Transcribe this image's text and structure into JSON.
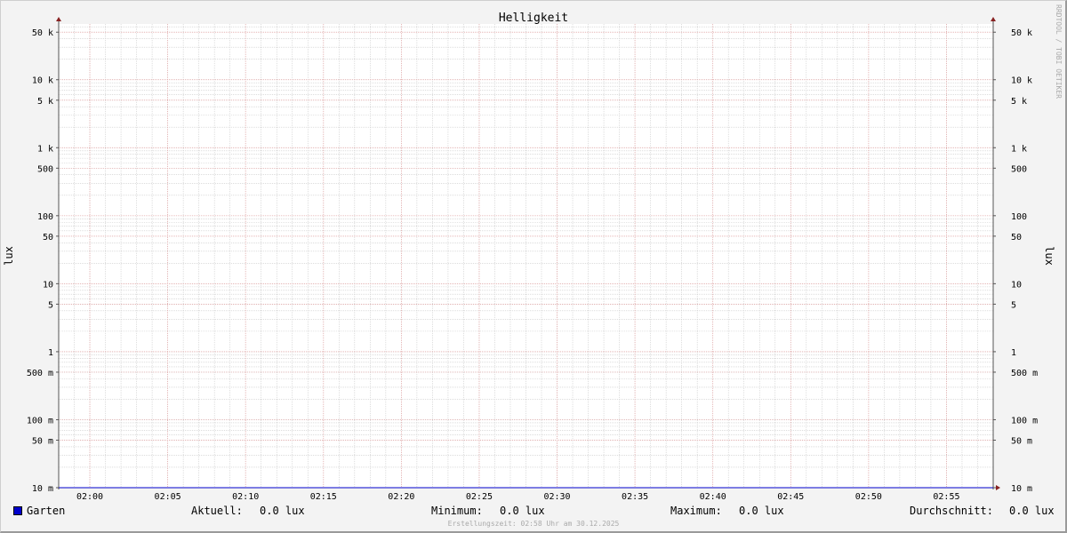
{
  "chart_data": {
    "type": "line",
    "title": "Helligkeit",
    "ylabel": "lux",
    "yscale": "log",
    "ylim": [
      0.01,
      66000
    ],
    "xlim": [
      "01:58",
      "02:58"
    ],
    "grid": true,
    "x_ticks": [
      "02:00",
      "02:05",
      "02:10",
      "02:15",
      "02:20",
      "02:25",
      "02:30",
      "02:35",
      "02:40",
      "02:45",
      "02:50",
      "02:55"
    ],
    "y_ticks": [
      {
        "value": 50000,
        "label": "50 k"
      },
      {
        "value": 10000,
        "label": "10 k"
      },
      {
        "value": 5000,
        "label": "5 k"
      },
      {
        "value": 1000,
        "label": "1 k"
      },
      {
        "value": 500,
        "label": "500"
      },
      {
        "value": 100,
        "label": "100"
      },
      {
        "value": 50,
        "label": "50"
      },
      {
        "value": 10,
        "label": "10"
      },
      {
        "value": 5,
        "label": "5"
      },
      {
        "value": 1,
        "label": "1"
      },
      {
        "value": 0.5,
        "label": "500 m"
      },
      {
        "value": 0.1,
        "label": "100 m"
      },
      {
        "value": 0.05,
        "label": "50 m"
      },
      {
        "value": 0.01,
        "label": "10 m"
      }
    ],
    "series": [
      {
        "name": "Garten",
        "color": "#0000cc",
        "x": [
          "01:58",
          "02:58"
        ],
        "values": [
          0.0,
          0.0
        ]
      }
    ]
  },
  "legend": {
    "series_name": "Garten",
    "current_label": "Aktuell:",
    "current_value": "0.0 lux",
    "min_label": "Minimum:",
    "min_value": "0.0 lux",
    "max_label": "Maximum:",
    "max_value": "0.0 lux",
    "avg_label": "Durchschnitt:",
    "avg_value": "0.0 lux"
  },
  "footer": "Erstellungszeit: 02:58 Uhr am 30.12.2025",
  "watermark": "RRDTOOL / TOBI OETIKER",
  "colors": {
    "major_grid": "#e0a0a0",
    "minor_grid": "#c8c8c8",
    "axis": "#555555",
    "arrow": "#882222"
  }
}
